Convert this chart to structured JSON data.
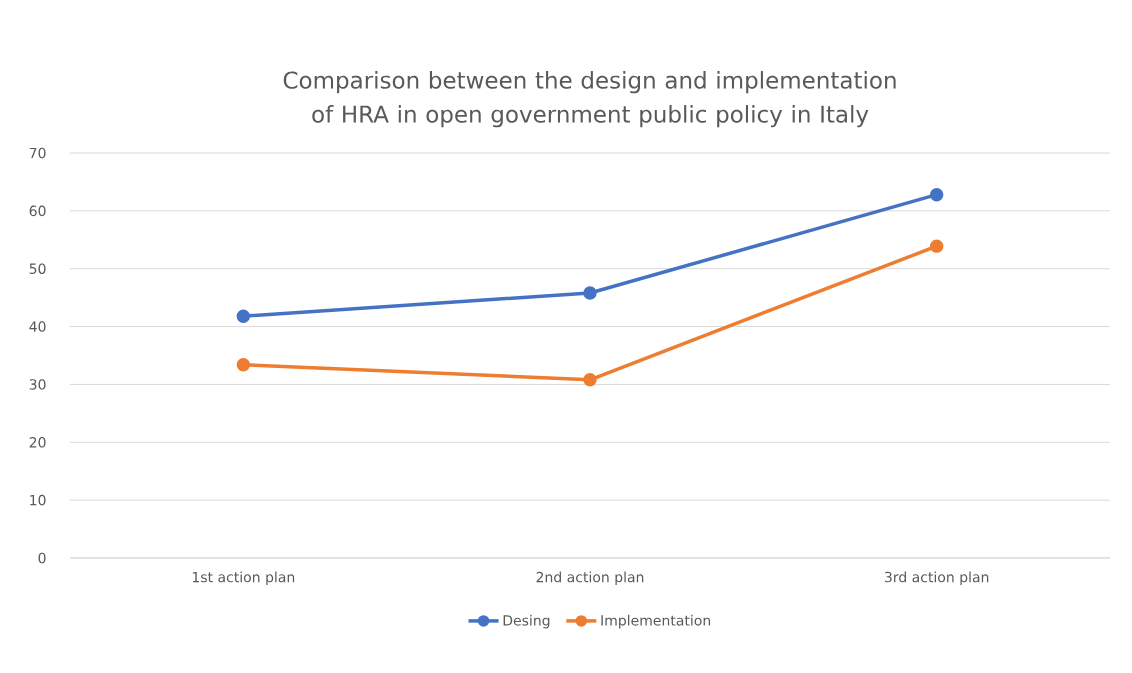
{
  "chart_data": {
    "type": "line",
    "title": "Comparison between the design and implementation of HRA in open government public policy in Italy",
    "categories": [
      "1st action plan",
      "2nd action plan",
      "3rd action plan"
    ],
    "series": [
      {
        "name": "Desing",
        "color": "#4472c4",
        "values": [
          41.8,
          45.8,
          62.8
        ]
      },
      {
        "name": "Implementation",
        "color": "#ed7d31",
        "values": [
          33.4,
          30.8,
          53.9
        ]
      }
    ],
    "ylim": [
      0,
      70
    ],
    "yticks": [
      0,
      10,
      20,
      30,
      40,
      50,
      60,
      70
    ],
    "grid": "y",
    "legend": "bottom",
    "marker": "circle",
    "line_style": "solid"
  }
}
